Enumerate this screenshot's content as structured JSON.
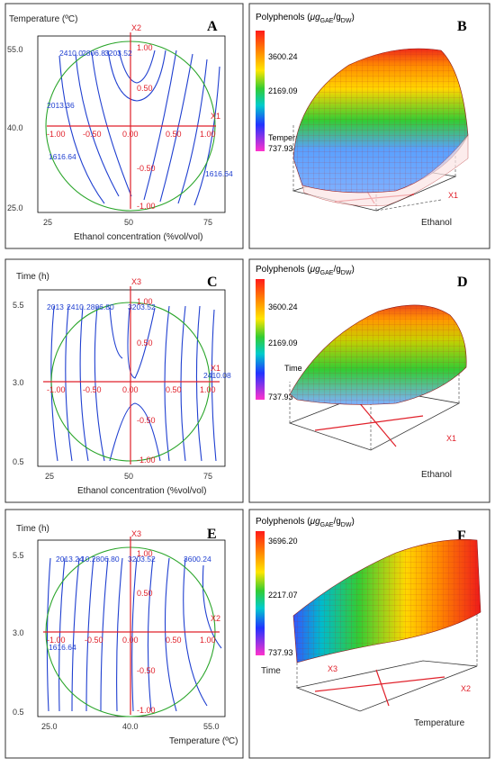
{
  "colors": {
    "contour": "#1f3fd0",
    "axis_red": "#e0202a",
    "design_circle": "#2aa52a",
    "mesh": "#b02020",
    "colormap": [
      "#ff1a1a",
      "#ff8c00",
      "#ffe600",
      "#33cc33",
      "#00cccc",
      "#2233ff",
      "#ff33cc"
    ]
  },
  "chart_data": [
    {
      "panel": "A",
      "type": "contour",
      "ylabel": "Temperature (ºC)",
      "xlabel": "Ethanol concentration (%vol/vol)",
      "x_ticks": [
        "25",
        "50",
        "75"
      ],
      "y_ticks": [
        "25.0",
        "40.0",
        "55.0"
      ],
      "xlim": [
        25,
        75
      ],
      "ylim": [
        25,
        55
      ],
      "coded_x_axis": "X1",
      "coded_y_axis": "X2",
      "coded_x_ticks": [
        "-1.00",
        "-0.50",
        "0.00",
        "0.50",
        "1.00"
      ],
      "coded_y_ticks": [
        "1.00",
        "0.50",
        "-0.50",
        "-1.00"
      ],
      "contour_labels": [
        "2410.0",
        "2806.8",
        "3203.52",
        "2013.36",
        "1616.64",
        "1616.64"
      ]
    },
    {
      "panel": "B",
      "type": "surface",
      "title_parts": {
        "main": "Polyphenols (",
        "mu": "μg",
        "sub1": "GAE",
        "slash": "/g",
        "sub2": "DW",
        "close": ")"
      },
      "colorbar_values": [
        "3600.24",
        "2169.09",
        "737.93"
      ],
      "axis_labels": {
        "depth": "Temperature",
        "x": "Ethanol",
        "x_coded": "X1"
      }
    },
    {
      "panel": "C",
      "type": "contour",
      "ylabel": "Time (h)",
      "xlabel": "Ethanol concentration (%vol/vol)",
      "x_ticks": [
        "25",
        "50",
        "75"
      ],
      "y_ticks": [
        "0.5",
        "3.0",
        "5.5"
      ],
      "xlim": [
        25,
        75
      ],
      "ylim": [
        0.5,
        5.5
      ],
      "coded_x_axis": "X1",
      "coded_y_axis": "X3",
      "coded_x_ticks": [
        "-1.00",
        "-0.50",
        "0.00",
        "0.50",
        "1.00"
      ],
      "coded_y_ticks": [
        "1.00",
        "0.50",
        "-0.50",
        "-1.00"
      ],
      "contour_labels": [
        "2013",
        "2410.",
        "2806.80",
        "3203.52",
        "2410.08"
      ]
    },
    {
      "panel": "D",
      "type": "surface",
      "title_parts": {
        "main": "Polyphenols (",
        "mu": "μg",
        "sub1": "GAE",
        "slash": "/g",
        "sub2": "DW",
        "close": ")"
      },
      "colorbar_values": [
        "3600.24",
        "2169.09",
        "737.93"
      ],
      "axis_labels": {
        "depth": "Time",
        "x": "Ethanol",
        "x_coded": "X1"
      }
    },
    {
      "panel": "E",
      "type": "contour",
      "ylabel": "Time (h)",
      "xlabel": "Temperature (ºC)",
      "x_ticks": [
        "25.0",
        "40.0",
        "55.0"
      ],
      "y_ticks": [
        "0.5",
        "3.0",
        "5.5"
      ],
      "xlim": [
        25,
        55
      ],
      "ylim": [
        0.5,
        5.5
      ],
      "coded_x_axis": "X2",
      "coded_y_axis": "X3",
      "coded_x_ticks": [
        "-1.00",
        "-0.50",
        "0.00",
        "0.50",
        "1.00"
      ],
      "coded_y_ticks": [
        "1.00",
        "0.50",
        "-0.50",
        "-1.00"
      ],
      "contour_labels": [
        "2013.24",
        "10.2806.80",
        "3203.52",
        "3600.24",
        "1616.64"
      ]
    },
    {
      "panel": "F",
      "type": "surface",
      "title_parts": {
        "main": "Polyphenols (",
        "mu": "μg",
        "sub1": "GAE",
        "slash": "/g",
        "sub2": "DW",
        "close": ")"
      },
      "colorbar_values": [
        "3696.20",
        "2217.07",
        "737.93"
      ],
      "axis_labels": {
        "depth": "Time",
        "x": "Temperature",
        "x_coded": "X2",
        "depth_coded": "X3"
      }
    }
  ]
}
